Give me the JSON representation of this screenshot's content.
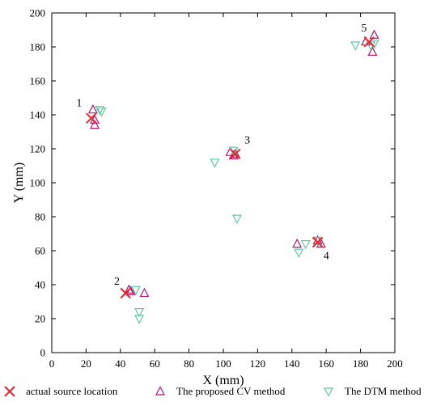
{
  "chart_data": {
    "type": "scatter",
    "title": "",
    "xlabel": "X (mm)",
    "ylabel": "Y (mm)",
    "xlim": [
      0,
      200
    ],
    "ylim": [
      0,
      200
    ],
    "xticks": [
      0,
      20,
      40,
      60,
      80,
      100,
      120,
      140,
      160,
      180,
      200
    ],
    "yticks": [
      0,
      20,
      40,
      60,
      80,
      100,
      120,
      140,
      160,
      180,
      200
    ],
    "grid": false,
    "legend_position": "bottom",
    "series": [
      {
        "name": "actual source location",
        "marker": "x",
        "color": "#e8262f",
        "points": [
          [
            23,
            138
          ],
          [
            43,
            35
          ],
          [
            107,
            117
          ],
          [
            155,
            65
          ],
          [
            185,
            183
          ]
        ]
      },
      {
        "name": "The proposed CV method",
        "marker": "triangle-up",
        "color": "#b5186b",
        "points": [
          [
            24,
            143
          ],
          [
            25,
            137
          ],
          [
            25,
            134
          ],
          [
            45,
            37
          ],
          [
            46,
            36
          ],
          [
            54,
            35
          ],
          [
            104,
            118
          ],
          [
            106,
            116
          ],
          [
            107,
            117
          ],
          [
            143,
            64
          ],
          [
            155,
            66
          ],
          [
            157,
            64
          ],
          [
            183,
            183
          ],
          [
            188,
            187
          ],
          [
            187,
            177
          ]
        ]
      },
      {
        "name": "The DTM method",
        "marker": "triangle-down",
        "color": "#5cc8a0",
        "points": [
          [
            28,
            143
          ],
          [
            29,
            142
          ],
          [
            49,
            37
          ],
          [
            51,
            24
          ],
          [
            51,
            20
          ],
          [
            95,
            112
          ],
          [
            106,
            119
          ],
          [
            108,
            79
          ],
          [
            144,
            59
          ],
          [
            148,
            64
          ],
          [
            155,
            66
          ],
          [
            177,
            181
          ],
          [
            186,
            181
          ],
          [
            188,
            182
          ]
        ]
      }
    ],
    "annotations": [
      {
        "text": "1",
        "x": 16,
        "y": 145
      },
      {
        "text": "2",
        "x": 38,
        "y": 40
      },
      {
        "text": "3",
        "x": 114,
        "y": 123
      },
      {
        "text": "4",
        "x": 160,
        "y": 55
      },
      {
        "text": "5",
        "x": 182,
        "y": 189
      }
    ]
  }
}
